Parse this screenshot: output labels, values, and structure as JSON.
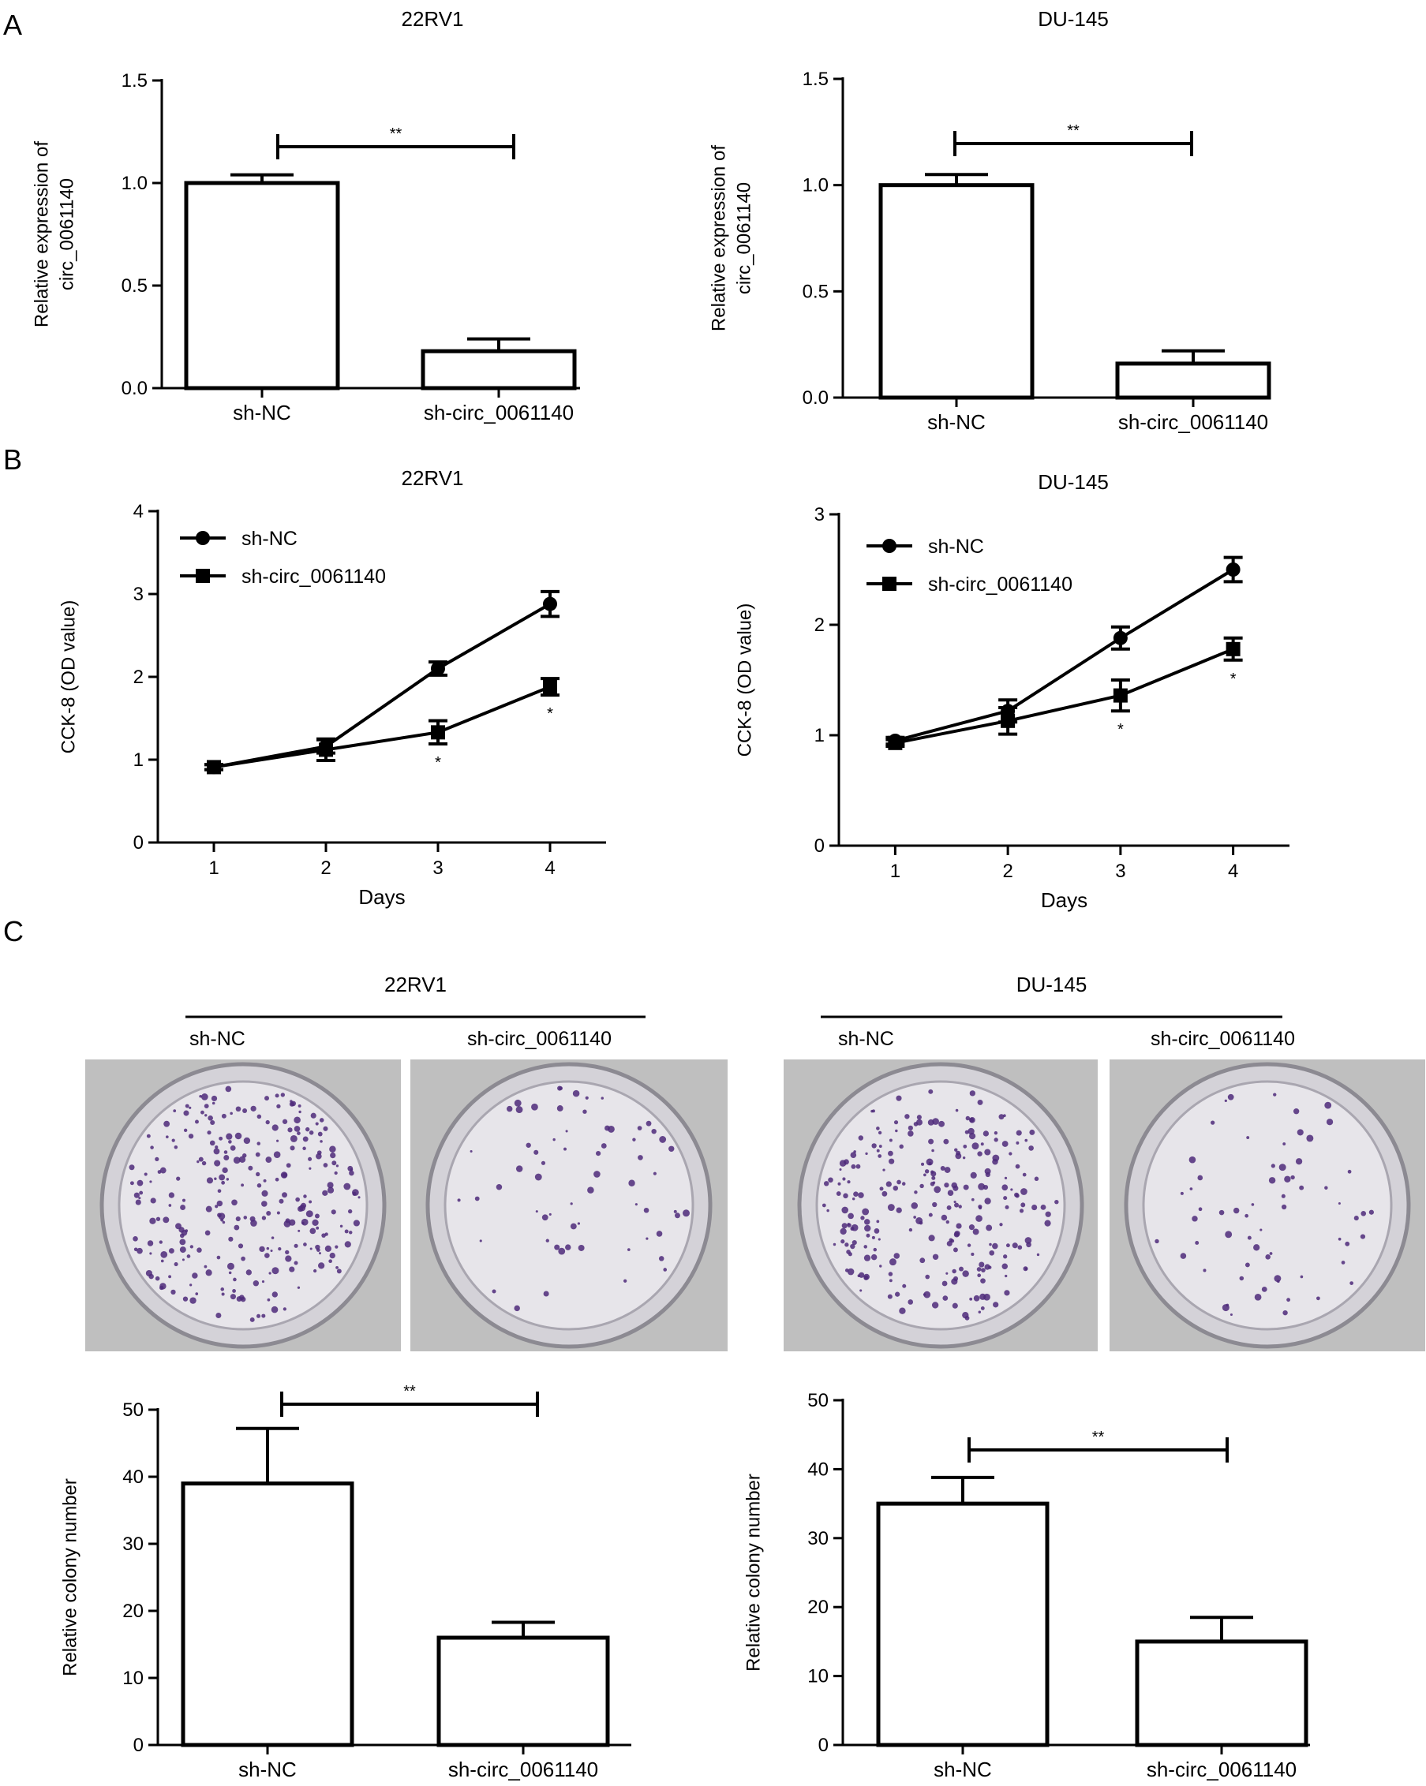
{
  "panel_labels": [
    "A",
    "B",
    "C"
  ],
  "colors": {
    "axis": "#000000",
    "bar_fill": "#ffffff",
    "photo_bg": "#bfbfbf",
    "dish_bg": "#e7e5ea",
    "colony": "#4d2a7a"
  },
  "chart_data": [
    {
      "id": "A-22RV1",
      "type": "bar",
      "title": "22RV1",
      "ylabel": [
        "Relative expression of",
        "circ_0061140"
      ],
      "xlabel": "",
      "categories": [
        "sh-NC",
        "sh-circ_0061140"
      ],
      "values": [
        1.0,
        0.18
      ],
      "errors": [
        0.04,
        0.06
      ],
      "ylim": [
        0,
        1.5
      ],
      "yticks": [
        0.0,
        0.5,
        1.0,
        1.5
      ],
      "ytick_labels": [
        "0.0",
        "0.5",
        "1.0",
        "1.5"
      ],
      "significance": "**"
    },
    {
      "id": "A-DU145",
      "type": "bar",
      "title": "DU-145",
      "ylabel": [
        "Relative expression of",
        "circ_0061140"
      ],
      "xlabel": "",
      "categories": [
        "sh-NC",
        "sh-circ_0061140"
      ],
      "values": [
        1.0,
        0.16
      ],
      "errors": [
        0.05,
        0.06
      ],
      "ylim": [
        0,
        1.5
      ],
      "yticks": [
        0.0,
        0.5,
        1.0,
        1.5
      ],
      "ytick_labels": [
        "0.0",
        "0.5",
        "1.0",
        "1.5"
      ],
      "significance": "**"
    },
    {
      "id": "B-22RV1",
      "type": "line",
      "title": "22RV1",
      "ylabel": "CCK-8 (OD value)",
      "xlabel": "Days",
      "x": [
        1,
        2,
        3,
        4
      ],
      "xlim": [
        0.5,
        4.5
      ],
      "xticks": [
        "1",
        "2",
        "3",
        "4"
      ],
      "ylim": [
        0,
        4
      ],
      "yticks": [
        "0",
        "1",
        "2",
        "3",
        "4"
      ],
      "legend_position": "top-left",
      "series": [
        {
          "name": "sh-NC",
          "marker": "circle",
          "values": [
            0.91,
            1.16,
            2.1,
            2.88
          ],
          "errors": [
            0.03,
            0.08,
            0.08,
            0.15
          ]
        },
        {
          "name": "sh-circ_0061140",
          "marker": "square",
          "values": [
            0.91,
            1.12,
            1.33,
            1.88
          ],
          "errors": [
            0.03,
            0.13,
            0.14,
            0.1
          ]
        }
      ],
      "annotations": [
        {
          "x": 3,
          "text": "*"
        },
        {
          "x": 4,
          "text": "*"
        }
      ]
    },
    {
      "id": "B-DU145",
      "type": "line",
      "title": "DU-145",
      "ylabel": "CCK-8 (OD value)",
      "xlabel": "Days",
      "x": [
        1,
        2,
        3,
        4
      ],
      "xlim": [
        0.5,
        4.5
      ],
      "xticks": [
        "1",
        "2",
        "3",
        "4"
      ],
      "ylim": [
        0,
        3
      ],
      "yticks": [
        "0",
        "1",
        "2",
        "3"
      ],
      "legend_position": "top-left",
      "series": [
        {
          "name": "sh-NC",
          "marker": "circle",
          "values": [
            0.95,
            1.22,
            1.88,
            2.5
          ],
          "errors": [
            0.03,
            0.1,
            0.1,
            0.11
          ]
        },
        {
          "name": "sh-circ_0061140",
          "marker": "square",
          "values": [
            0.93,
            1.13,
            1.36,
            1.78
          ],
          "errors": [
            0.03,
            0.12,
            0.14,
            0.1
          ]
        }
      ],
      "annotations": [
        {
          "x": 3,
          "text": "*"
        },
        {
          "x": 4,
          "text": "*"
        }
      ]
    },
    {
      "id": "C-22RV1",
      "type": "bar",
      "title": "",
      "ylabel": "Relative colony number",
      "xlabel": "",
      "categories": [
        "sh-NC",
        "sh-circ_0061140"
      ],
      "values": [
        39,
        16
      ],
      "errors": [
        8.2,
        2.3
      ],
      "ylim": [
        0,
        50
      ],
      "yticks": [
        0,
        10,
        20,
        30,
        40,
        50
      ],
      "ytick_labels": [
        "0",
        "10",
        "20",
        "30",
        "40",
        "50"
      ],
      "significance": "**"
    },
    {
      "id": "C-DU145",
      "type": "bar",
      "title": "",
      "ylabel": "Relative colony number",
      "xlabel": "",
      "categories": [
        "sh-NC",
        "sh-circ_0061140"
      ],
      "values": [
        35,
        15
      ],
      "errors": [
        3.8,
        3.5
      ],
      "ylim": [
        0,
        50
      ],
      "yticks": [
        0,
        10,
        20,
        30,
        40,
        50
      ],
      "ytick_labels": [
        "0",
        "10",
        "20",
        "30",
        "40",
        "50"
      ],
      "significance": "**"
    }
  ],
  "colony_photos": [
    {
      "title": "22RV1",
      "labels": [
        "sh-NC",
        "sh-circ_0061140"
      ],
      "density": [
        0.85,
        0.2
      ]
    },
    {
      "title": "DU-145",
      "labels": [
        "sh-NC",
        "sh-circ_0061140"
      ],
      "density": [
        0.8,
        0.2
      ]
    }
  ]
}
